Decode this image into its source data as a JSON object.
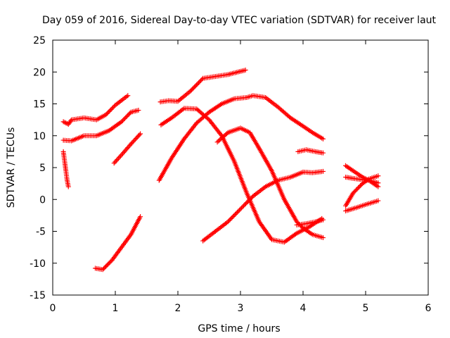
{
  "chart_data": {
    "type": "scatter",
    "title": "Day 059 of 2016, Sidereal Day-to-day VTEC variation (SDTVAR) for receiver laut",
    "xlabel": "GPS time / hours",
    "ylabel": "SDTVAR / TECUs",
    "xlim": [
      0,
      6
    ],
    "ylim": [
      -15,
      25
    ],
    "xticks": [
      0,
      1,
      2,
      3,
      4,
      5,
      6
    ],
    "yticks": [
      -15,
      -10,
      -5,
      0,
      5,
      10,
      15,
      20,
      25
    ],
    "grid": false,
    "legend": "none",
    "marker": "+",
    "color": "#ff0000",
    "series": [
      {
        "points": [
          [
            0.17,
            7.5
          ],
          [
            0.19,
            6.0
          ],
          [
            0.21,
            4.5
          ],
          [
            0.23,
            3.0
          ],
          [
            0.25,
            2.0
          ]
        ]
      },
      {
        "points": [
          [
            0.17,
            12.2
          ],
          [
            0.25,
            11.8
          ],
          [
            0.3,
            12.5
          ],
          [
            0.5,
            12.8
          ],
          [
            0.7,
            12.5
          ],
          [
            0.85,
            13.3
          ],
          [
            1.0,
            14.8
          ],
          [
            1.2,
            16.3
          ]
        ]
      },
      {
        "points": [
          [
            0.17,
            9.3
          ],
          [
            0.3,
            9.2
          ],
          [
            0.5,
            10.0
          ],
          [
            0.7,
            10.0
          ],
          [
            0.9,
            10.8
          ],
          [
            1.1,
            12.2
          ],
          [
            1.25,
            13.7
          ],
          [
            1.37,
            14.0
          ]
        ]
      },
      {
        "points": [
          [
            0.68,
            -10.8
          ],
          [
            0.8,
            -11.0
          ],
          [
            0.95,
            -9.5
          ],
          [
            1.1,
            -7.5
          ],
          [
            1.25,
            -5.5
          ],
          [
            1.4,
            -2.7
          ]
        ]
      },
      {
        "points": [
          [
            0.98,
            5.7
          ],
          [
            1.1,
            7.0
          ],
          [
            1.25,
            8.7
          ],
          [
            1.4,
            10.3
          ]
        ]
      },
      {
        "points": [
          [
            1.72,
            15.3
          ],
          [
            1.85,
            15.5
          ],
          [
            2.0,
            15.4
          ],
          [
            2.2,
            17.0
          ],
          [
            2.4,
            19.0
          ],
          [
            2.6,
            19.3
          ],
          [
            2.8,
            19.6
          ],
          [
            3.08,
            20.3
          ]
        ]
      },
      {
        "points": [
          [
            1.73,
            11.7
          ],
          [
            1.9,
            12.8
          ],
          [
            2.1,
            14.3
          ],
          [
            2.3,
            14.2
          ],
          [
            2.5,
            12.5
          ],
          [
            2.7,
            10.0
          ],
          [
            2.9,
            6.0
          ],
          [
            3.1,
            1.0
          ],
          [
            3.3,
            -3.5
          ],
          [
            3.5,
            -6.3
          ],
          [
            3.7,
            -6.7
          ],
          [
            3.9,
            -5.3
          ],
          [
            4.1,
            -4.3
          ],
          [
            4.3,
            -3.0
          ]
        ]
      },
      {
        "points": [
          [
            1.7,
            3.0
          ],
          [
            1.9,
            6.5
          ],
          [
            2.1,
            9.5
          ],
          [
            2.3,
            12.0
          ],
          [
            2.5,
            13.7
          ],
          [
            2.7,
            15.0
          ],
          [
            2.9,
            15.8
          ],
          [
            3.1,
            16.0
          ],
          [
            3.2,
            16.3
          ],
          [
            3.4,
            16.0
          ],
          [
            3.6,
            14.5
          ],
          [
            3.8,
            12.8
          ],
          [
            4.0,
            11.5
          ],
          [
            4.15,
            10.5
          ],
          [
            4.32,
            9.5
          ]
        ]
      },
      {
        "points": [
          [
            2.4,
            -6.5
          ],
          [
            2.6,
            -5.0
          ],
          [
            2.8,
            -3.5
          ],
          [
            3.0,
            -1.5
          ],
          [
            3.2,
            0.5
          ],
          [
            3.4,
            2.0
          ],
          [
            3.6,
            3.0
          ],
          [
            3.8,
            3.5
          ],
          [
            4.0,
            4.3
          ],
          [
            4.15,
            4.2
          ],
          [
            4.32,
            4.4
          ]
        ]
      },
      {
        "points": [
          [
            2.63,
            9.0
          ],
          [
            2.8,
            10.5
          ],
          [
            3.0,
            11.2
          ],
          [
            3.15,
            10.5
          ],
          [
            3.3,
            8.0
          ],
          [
            3.5,
            4.5
          ],
          [
            3.7,
            0.0
          ],
          [
            3.9,
            -3.5
          ],
          [
            4.0,
            -4.5
          ],
          [
            4.15,
            -5.5
          ],
          [
            4.32,
            -6.0
          ]
        ]
      },
      {
        "points": [
          [
            3.9,
            -4.0
          ],
          [
            4.05,
            -3.8
          ],
          [
            4.2,
            -3.5
          ],
          [
            4.32,
            -3.2
          ]
        ]
      },
      {
        "points": [
          [
            3.92,
            7.5
          ],
          [
            4.05,
            7.8
          ],
          [
            4.2,
            7.5
          ],
          [
            4.32,
            7.3
          ]
        ]
      },
      {
        "points": [
          [
            4.68,
            5.3
          ],
          [
            4.8,
            4.5
          ],
          [
            4.95,
            3.5
          ],
          [
            5.05,
            3.0
          ],
          [
            5.2,
            2.0
          ]
        ]
      },
      {
        "points": [
          [
            4.68,
            3.5
          ],
          [
            4.8,
            3.3
          ],
          [
            4.95,
            3.1
          ],
          [
            5.05,
            3.0
          ],
          [
            5.2,
            2.6
          ]
        ]
      },
      {
        "points": [
          [
            4.68,
            -1.0
          ],
          [
            4.8,
            1.0
          ],
          [
            4.95,
            2.5
          ],
          [
            5.05,
            3.2
          ],
          [
            5.2,
            3.7
          ]
        ]
      },
      {
        "points": [
          [
            4.68,
            -1.8
          ],
          [
            4.85,
            -1.3
          ],
          [
            5.0,
            -0.8
          ],
          [
            5.2,
            -0.2
          ]
        ]
      }
    ]
  }
}
